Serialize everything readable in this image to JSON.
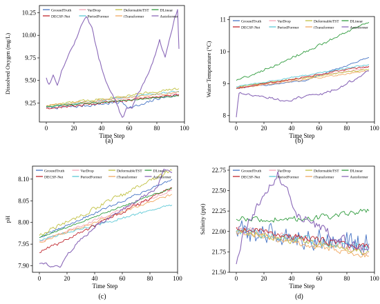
{
  "legend_labels": [
    "GroundTruth",
    "VarDrop",
    "DeformableTST",
    "DLinear",
    "DECSF-Net",
    "PeriodFormer",
    "iTransformer",
    "Autoformer"
  ],
  "colors": {
    "GroundTruth": "#4472c4",
    "VarDrop": "#f4a6b7",
    "DeformableTST": "#c0c040",
    "DLinear": "#2e9b3c",
    "DECSF-Net": "#c0262d",
    "PeriodFormer": "#5bc8d6",
    "iTransformer": "#f0a860",
    "Autoformer": "#8a68b8"
  },
  "chart_data": [
    {
      "type": "line",
      "panel_label": "(a)",
      "xlabel": "Time Step",
      "ylabel": "Dissolved Oxygen (mg/L)",
      "xlim": [
        -5,
        100
      ],
      "ylim": [
        9.04,
        10.33
      ],
      "xticks": [
        0,
        20,
        40,
        60,
        80,
        100
      ],
      "yticks": [
        9.25,
        9.5,
        9.75,
        10.0,
        10.25
      ],
      "ytick_labels": [
        "9.25",
        "9.50",
        "9.75",
        "10.00",
        "10.25"
      ],
      "n_points": 97,
      "series": [
        {
          "name": "GroundTruth",
          "keypoints": [
            [
              0,
              9.2
            ],
            [
              20,
              9.21
            ],
            [
              40,
              9.24
            ],
            [
              55,
              9.26
            ],
            [
              60,
              9.2
            ],
            [
              70,
              9.23
            ],
            [
              80,
              9.3
            ],
            [
              96,
              9.34
            ]
          ],
          "noise": 0.025
        },
        {
          "name": "VarDrop",
          "keypoints": [
            [
              0,
              9.2
            ],
            [
              96,
              9.35
            ]
          ],
          "noise": 0.015
        },
        {
          "name": "DeformableTST",
          "keypoints": [
            [
              0,
              9.22
            ],
            [
              96,
              9.41
            ]
          ],
          "noise": 0.02
        },
        {
          "name": "DLinear",
          "keypoints": [
            [
              0,
              9.21
            ],
            [
              96,
              9.33
            ]
          ],
          "noise": 0.01
        },
        {
          "name": "DECSF-Net",
          "keypoints": [
            [
              0,
              9.19
            ],
            [
              96,
              9.34
            ]
          ],
          "noise": 0.02
        },
        {
          "name": "PeriodFormer",
          "keypoints": [
            [
              0,
              9.21
            ],
            [
              96,
              9.38
            ]
          ],
          "noise": 0.015
        },
        {
          "name": "iTransformer",
          "keypoints": [
            [
              0,
              9.22
            ],
            [
              96,
              9.37
            ]
          ],
          "noise": 0.015
        },
        {
          "name": "Autoformer",
          "keypoints": [
            [
              0,
              9.53
            ],
            [
              2,
              9.45
            ],
            [
              5,
              9.55
            ],
            [
              8,
              9.45
            ],
            [
              11,
              9.6
            ],
            [
              15,
              9.75
            ],
            [
              20,
              9.9
            ],
            [
              25,
              10.1
            ],
            [
              29,
              10.2
            ],
            [
              33,
              10.08
            ],
            [
              38,
              9.75
            ],
            [
              43,
              9.5
            ],
            [
              48,
              9.35
            ],
            [
              52,
              9.2
            ],
            [
              55,
              9.08
            ],
            [
              58,
              9.18
            ],
            [
              62,
              9.2
            ],
            [
              66,
              9.35
            ],
            [
              70,
              9.45
            ],
            [
              74,
              9.58
            ],
            [
              78,
              9.75
            ],
            [
              82,
              9.95
            ],
            [
              86,
              9.75
            ],
            [
              90,
              10.0
            ],
            [
              93,
              10.2
            ],
            [
              95,
              10.28
            ],
            [
              96,
              9.85
            ]
          ],
          "noise": 0.02
        }
      ]
    },
    {
      "type": "line",
      "panel_label": "(b)",
      "xlabel": "Time Step",
      "ylabel": "Water Temperature (°C)",
      "xlim": [
        -5,
        100
      ],
      "ylim": [
        7.8,
        11.1
      ],
      "xticks": [
        0,
        20,
        40,
        60,
        80,
        100
      ],
      "yticks": [
        8,
        9,
        10,
        11
      ],
      "ytick_labels": [
        "8",
        "9",
        "10",
        "11"
      ],
      "n_points": 97,
      "series": [
        {
          "name": "GroundTruth",
          "keypoints": [
            [
              0,
              8.85
            ],
            [
              50,
              9.1
            ],
            [
              96,
              9.82
            ]
          ],
          "noise": 0.03
        },
        {
          "name": "VarDrop",
          "keypoints": [
            [
              0,
              8.85
            ],
            [
              96,
              9.5
            ]
          ],
          "noise": 0.04
        },
        {
          "name": "DeformableTST",
          "keypoints": [
            [
              0,
              8.9
            ],
            [
              96,
              9.45
            ]
          ],
          "noise": 0.03
        },
        {
          "name": "DLinear",
          "keypoints": [
            [
              0,
              9.1
            ],
            [
              30,
              9.6
            ],
            [
              60,
              10.2
            ],
            [
              96,
              10.92
            ]
          ],
          "noise": 0.06
        },
        {
          "name": "DECSF-Net",
          "keypoints": [
            [
              0,
              8.85
            ],
            [
              96,
              9.55
            ]
          ],
          "noise": 0.04
        },
        {
          "name": "PeriodFormer",
          "keypoints": [
            [
              0,
              8.9
            ],
            [
              96,
              9.6
            ]
          ],
          "noise": 0.03
        },
        {
          "name": "iTransformer",
          "keypoints": [
            [
              0,
              8.85
            ],
            [
              96,
              9.4
            ]
          ],
          "noise": 0.03
        },
        {
          "name": "Autoformer",
          "keypoints": [
            [
              0,
              7.95
            ],
            [
              2,
              8.7
            ],
            [
              20,
              8.6
            ],
            [
              35,
              8.45
            ],
            [
              50,
              8.6
            ],
            [
              65,
              8.7
            ],
            [
              80,
              9.0
            ],
            [
              96,
              9.4
            ]
          ],
          "noise": 0.06
        }
      ]
    },
    {
      "type": "line",
      "panel_label": "(c)",
      "xlabel": "Time Step",
      "ylabel": "pH",
      "xlim": [
        -5,
        100
      ],
      "ylim": [
        7.885,
        8.13
      ],
      "xticks": [
        0,
        20,
        40,
        60,
        80,
        100
      ],
      "yticks": [
        7.9,
        7.95,
        8.0,
        8.05,
        8.1
      ],
      "ytick_labels": [
        "7.90",
        "7.95",
        "8.00",
        "8.05",
        "8.10"
      ],
      "n_points": 97,
      "series": [
        {
          "name": "GroundTruth",
          "keypoints": [
            [
              0,
              7.965
            ],
            [
              96,
              8.1
            ]
          ],
          "noise": 0.004
        },
        {
          "name": "VarDrop",
          "keypoints": [
            [
              0,
              7.955
            ],
            [
              96,
              8.075
            ]
          ],
          "noise": 0.004
        },
        {
          "name": "DeformableTST",
          "keypoints": [
            [
              0,
              7.97
            ],
            [
              96,
              8.12
            ]
          ],
          "noise": 0.007
        },
        {
          "name": "DLinear",
          "keypoints": [
            [
              0,
              7.965
            ],
            [
              96,
              8.08
            ]
          ],
          "noise": 0.003
        },
        {
          "name": "DECSF-Net",
          "keypoints": [
            [
              0,
              7.93
            ],
            [
              96,
              8.08
            ]
          ],
          "noise": 0.006
        },
        {
          "name": "PeriodFormer",
          "keypoints": [
            [
              0,
              7.96
            ],
            [
              96,
              8.04
            ]
          ],
          "noise": 0.004
        },
        {
          "name": "iTransformer",
          "keypoints": [
            [
              0,
              7.955
            ],
            [
              96,
              8.065
            ]
          ],
          "noise": 0.004
        },
        {
          "name": "Autoformer",
          "keypoints": [
            [
              0,
              7.905
            ],
            [
              10,
              7.9
            ],
            [
              15,
              7.895
            ],
            [
              20,
              7.925
            ],
            [
              30,
              7.96
            ],
            [
              40,
              7.99
            ],
            [
              55,
              8.02
            ],
            [
              70,
              8.05
            ],
            [
              85,
              8.08
            ],
            [
              90,
              8.12
            ],
            [
              96,
              8.115
            ]
          ],
          "noise": 0.005
        }
      ]
    },
    {
      "type": "line",
      "panel_label": "(d)",
      "xlabel": "Time Step",
      "ylabel": "Salinity (ppt)",
      "xlim": [
        -5,
        100
      ],
      "ylim": [
        21.5,
        22.8
      ],
      "xticks": [
        0,
        20,
        40,
        60,
        80,
        100
      ],
      "yticks": [
        21.5,
        21.75,
        22.0,
        22.25,
        22.5,
        22.75
      ],
      "ytick_labels": [
        "21.50",
        "21.75",
        "22.00",
        "22.25",
        "22.50",
        "22.75"
      ],
      "n_points": 97,
      "series": [
        {
          "name": "GroundTruth",
          "keypoints": [
            [
              0,
              22.0
            ],
            [
              96,
              21.85
            ]
          ],
          "noise": 0.18
        },
        {
          "name": "VarDrop",
          "keypoints": [
            [
              0,
              22.05
            ],
            [
              96,
              21.75
            ]
          ],
          "noise": 0.05
        },
        {
          "name": "DeformableTST",
          "keypoints": [
            [
              0,
              22.0
            ],
            [
              96,
              21.75
            ]
          ],
          "noise": 0.06
        },
        {
          "name": "DLinear",
          "keypoints": [
            [
              0,
              22.15
            ],
            [
              50,
              22.15
            ],
            [
              96,
              22.25
            ]
          ],
          "noise": 0.05
        },
        {
          "name": "DECSF-Net",
          "keypoints": [
            [
              0,
              22.05
            ],
            [
              96,
              21.8
            ]
          ],
          "noise": 0.06
        },
        {
          "name": "PeriodFormer",
          "keypoints": [
            [
              0,
              22.0
            ],
            [
              96,
              21.8
            ]
          ],
          "noise": 0.07
        },
        {
          "name": "iTransformer",
          "keypoints": [
            [
              0,
              22.0
            ],
            [
              96,
              21.7
            ]
          ],
          "noise": 0.05
        },
        {
          "name": "Autoformer",
          "keypoints": [
            [
              0,
              21.6
            ],
            [
              5,
              22.0
            ],
            [
              15,
              22.3
            ],
            [
              25,
              22.6
            ],
            [
              30,
              22.7
            ],
            [
              35,
              22.55
            ],
            [
              45,
              22.2
            ],
            [
              60,
              22.05
            ],
            [
              75,
              21.9
            ],
            [
              96,
              21.8
            ]
          ],
          "noise": 0.08
        }
      ]
    }
  ]
}
